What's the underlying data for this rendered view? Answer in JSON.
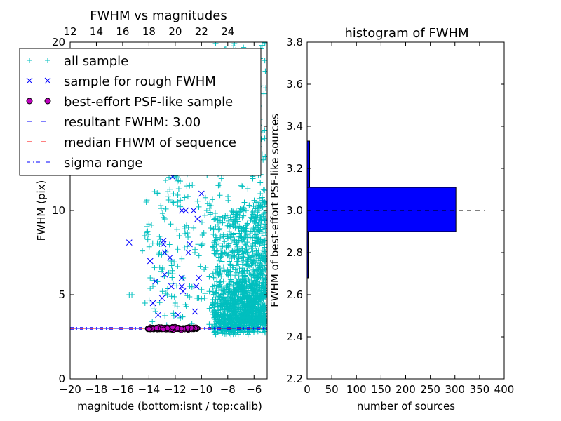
{
  "chart_data": [
    {
      "type": "scatter",
      "title": "FWHM vs magnitudes",
      "xlabel": "magnitude (bottom:isnt / top:calib)",
      "ylabel": "FWHM (pix)",
      "xlim": [
        -20,
        -5
      ],
      "ylim": [
        0,
        20
      ],
      "x_ticks": [
        -20,
        -18,
        -16,
        -14,
        -12,
        -10,
        -8,
        -6
      ],
      "x_tick_labels": [
        "−20",
        "−18",
        "−16",
        "−14",
        "−12",
        "−10",
        "−8",
        "−6"
      ],
      "y_ticks": [
        0,
        5,
        10,
        15,
        20
      ],
      "y_tick_labels": [
        "0",
        "5",
        "10",
        "15",
        "20"
      ],
      "top_axis": {
        "label_offset": 32,
        "ticks": [
          12,
          14,
          16,
          18,
          20,
          22,
          24
        ],
        "tick_labels": [
          "12",
          "14",
          "16",
          "18",
          "20",
          "22",
          "24"
        ]
      },
      "legend": {
        "placement": "upper-left",
        "entries": [
          "all sample",
          "sample for rough FWHM",
          "best-effort PSF-like sample",
          "resultant FWHM: 3.00",
          "median FHWM of sequence",
          "sigma range"
        ]
      },
      "series": [
        {
          "name": "all sample",
          "marker": "+",
          "color": "#00bfbf",
          "description": "about 2000 sources, dense cloud at magnitudes -9 to -5.2, FWHM 2.5-20",
          "points": [
            [
              -15.5,
              5.0
            ],
            [
              -15.3,
              5.0
            ],
            [
              -14.5,
              7.6
            ],
            [
              -14.3,
              8.5
            ],
            [
              -14.3,
              4.5
            ],
            [
              -14.2,
              10.5
            ],
            [
              -14.0,
              9.2
            ],
            [
              -13.9,
              6.0
            ],
            [
              -13.8,
              12.5
            ],
            [
              -13.7,
              5.5
            ],
            [
              -13.5,
              15.5
            ],
            [
              -13.5,
              4.0
            ],
            [
              -13.3,
              11.0
            ],
            [
              -13.2,
              8.0
            ],
            [
              -13.0,
              6.5
            ],
            [
              -12.9,
              13.5
            ],
            [
              -12.8,
              9.5
            ],
            [
              -12.6,
              5.0
            ],
            [
              -12.5,
              16.5
            ],
            [
              -12.3,
              7.0
            ],
            [
              -12.2,
              10.5
            ],
            [
              -12.0,
              4.5
            ],
            [
              -11.9,
              12.0
            ],
            [
              -11.7,
              8.5
            ],
            [
              -11.5,
              14.5
            ],
            [
              -11.4,
              6.0
            ],
            [
              -11.2,
              17.5
            ],
            [
              -11.0,
              9.0
            ],
            [
              -10.9,
              5.5
            ],
            [
              -10.7,
              11.5
            ],
            [
              -10.5,
              7.5
            ],
            [
              -10.4,
              13.0
            ],
            [
              -10.2,
              4.8
            ],
            [
              -10.0,
              15.0
            ],
            [
              -9.9,
              8.0
            ],
            [
              -9.8,
              6.5
            ],
            [
              -9.6,
              10.0
            ],
            [
              -9.5,
              12.5
            ],
            [
              -9.4,
              5.2
            ],
            [
              -9.2,
              18.0
            ],
            [
              -9.1,
              7.8
            ],
            [
              -9.0,
              14.0
            ]
          ]
        },
        {
          "name": "sample for rough FWHM",
          "marker": "x",
          "color": "#0000ff",
          "points": [
            [
              -15.5,
              8.1
            ],
            [
              -13.9,
              7.0
            ],
            [
              -13.7,
              4.5
            ],
            [
              -13.5,
              5.8
            ],
            [
              -13.3,
              3.8
            ],
            [
              -13.0,
              4.8
            ],
            [
              -12.9,
              8.2
            ],
            [
              -12.9,
              8.0
            ],
            [
              -12.8,
              7.5
            ],
            [
              -12.8,
              6.2
            ],
            [
              -12.5,
              14.5
            ],
            [
              -12.4,
              7.2
            ],
            [
              -12.3,
              5.5
            ],
            [
              -12.2,
              12.0
            ],
            [
              -12.0,
              16.2
            ],
            [
              -11.8,
              3.8
            ],
            [
              -11.6,
              13.0
            ],
            [
              -11.5,
              10.0
            ],
            [
              -11.5,
              6.0
            ],
            [
              -11.5,
              5.5
            ],
            [
              -11.4,
              5.2
            ],
            [
              -11.3,
              12.5
            ],
            [
              -11.2,
              10.0
            ],
            [
              -11.1,
              13.5
            ],
            [
              -11.0,
              7.5
            ],
            [
              -10.9,
              8.0
            ],
            [
              -10.8,
              15.0
            ],
            [
              -10.6,
              10.0
            ],
            [
              -10.5,
              4.0
            ],
            [
              -10.4,
              5.5
            ],
            [
              -10.3,
              9.5
            ],
            [
              -10.2,
              6.0
            ],
            [
              -10.0,
              11.0
            ]
          ]
        },
        {
          "name": "best-effort PSF-like sample",
          "marker": "o",
          "color": "#bf00bf",
          "description": "about 300 sources at FWHM 2.9-3.1, magnitudes -14 to -10.3",
          "points": []
        },
        {
          "name": "resultant FWHM: 3.00",
          "style": "dashed",
          "color": "#0000ff",
          "value": 3.0
        },
        {
          "name": "median FHWM of sequence",
          "style": "dashed",
          "color": "#ff0000",
          "value": 3.0
        },
        {
          "name": "sigma range",
          "style": "dash-dot",
          "color": "#0000ff",
          "values": [
            2.95,
            3.05
          ]
        }
      ]
    },
    {
      "type": "bar",
      "orientation": "horizontal",
      "title": "histogram of FWHM",
      "xlabel": "number of sources",
      "ylabel": "FWHM of best-effort PSF-like sources",
      "xlim": [
        0,
        400
      ],
      "ylim": [
        2.2,
        3.8
      ],
      "x_ticks": [
        0,
        50,
        100,
        150,
        200,
        250,
        300,
        350,
        400
      ],
      "x_tick_labels": [
        "0",
        "50",
        "100",
        "150",
        "200",
        "250",
        "300",
        "350",
        "400"
      ],
      "y_ticks": [
        2.2,
        2.4,
        2.6,
        2.8,
        3.0,
        3.2,
        3.4,
        3.6,
        3.8
      ],
      "y_tick_labels": [
        "2.2",
        "2.4",
        "2.6",
        "2.8",
        "3.0",
        "3.2",
        "3.4",
        "3.6",
        "3.8"
      ],
      "bars": [
        {
          "bin": [
            2.68,
            2.9
          ],
          "count": 2
        },
        {
          "bin": [
            2.9,
            3.11
          ],
          "count": 302
        },
        {
          "bin": [
            3.11,
            3.33
          ],
          "count": 5
        }
      ],
      "bar_color": "#0000ff",
      "reference_line": {
        "value": 3.0,
        "style": "dashed",
        "color": "#000000",
        "x_range": [
          0,
          360
        ]
      }
    }
  ]
}
